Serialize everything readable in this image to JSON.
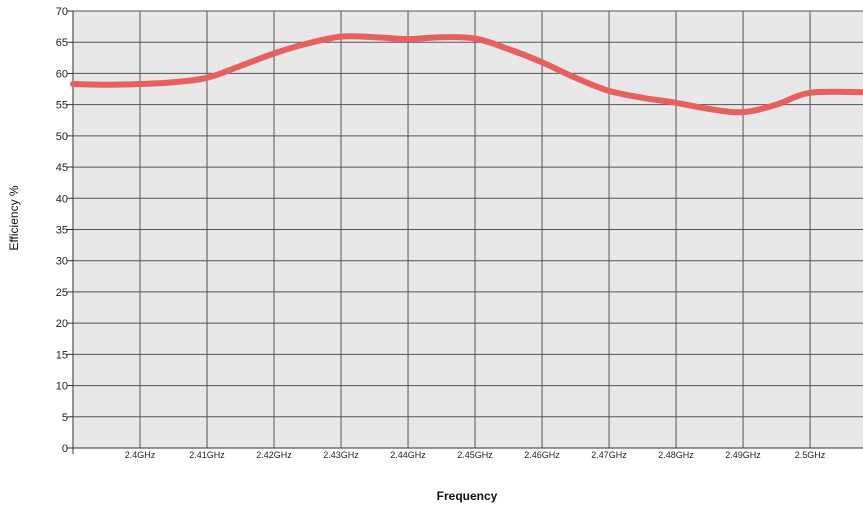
{
  "chart_data": {
    "type": "line",
    "title": "",
    "xlabel": "Frequency",
    "ylabel": "Efficiency %",
    "ylim": [
      0,
      70
    ],
    "ytick_step": 5,
    "y_ticks": [
      "0",
      "5",
      "10",
      "15",
      "20",
      "25",
      "30",
      "35",
      "40",
      "45",
      "50",
      "55",
      "60",
      "65",
      "70"
    ],
    "x_range_ghz": [
      2.39,
      2.5079
    ],
    "x_tick_values": [
      2.4,
      2.41,
      2.42,
      2.43,
      2.44,
      2.45,
      2.46,
      2.47,
      2.48,
      2.49,
      2.5
    ],
    "x_tick_labels": [
      "2.4GHz",
      "2.41GHz",
      "2.42GHz",
      "2.43GHz",
      "2.44GHz",
      "2.45GHz",
      "2.46GHz",
      "2.47GHz",
      "2.48GHz",
      "2.49GHz",
      "2.5GHz"
    ],
    "grid": true,
    "legend": "none",
    "series": [
      {
        "color": "#e8605e",
        "x": [
          2.39,
          2.395,
          2.4,
          2.405,
          2.41,
          2.415,
          2.42,
          2.425,
          2.43,
          2.435,
          2.44,
          2.445,
          2.45,
          2.455,
          2.46,
          2.465,
          2.47,
          2.475,
          2.48,
          2.485,
          2.49,
          2.495,
          2.5,
          2.5079
        ],
        "y": [
          58.3,
          58.2,
          58.3,
          58.6,
          59.3,
          61.2,
          63.2,
          64.8,
          65.9,
          65.8,
          65.5,
          65.8,
          65.6,
          63.9,
          61.8,
          59.3,
          57.2,
          56.1,
          55.3,
          54.3,
          53.8,
          55.0,
          56.9,
          57.0
        ]
      }
    ]
  }
}
